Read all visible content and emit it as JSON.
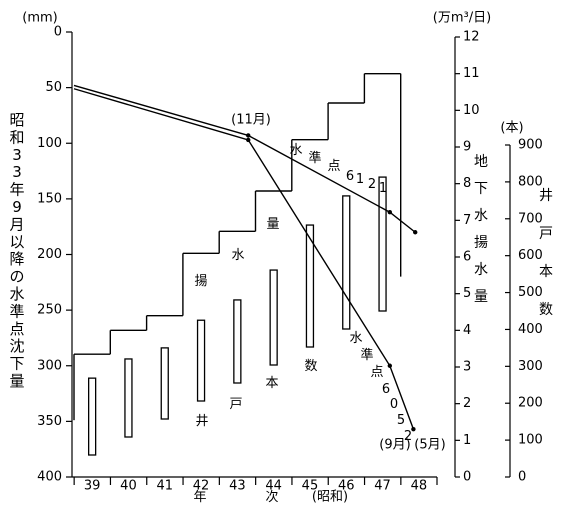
{
  "chart_data": {
    "type": "line",
    "ylabel": "昭和33年9月以降の水準点沈下量",
    "yunit": "(mm)",
    "ylim": [
      0,
      400
    ],
    "yticks": [
      0,
      50,
      100,
      150,
      200,
      250,
      300,
      350,
      400
    ],
    "y_inverted": true,
    "y2label": "地下水揚水量",
    "y2unit": "(万m³/日)",
    "y2lim": [
      0,
      12
    ],
    "y2ticks": [
      0,
      1,
      2,
      3,
      4,
      5,
      6,
      7,
      8,
      9,
      10,
      11,
      12
    ],
    "y3label": "井戸本数",
    "y3unit": "(本)",
    "y3lim": [
      0,
      900
    ],
    "y3ticks": [
      0,
      100,
      200,
      300,
      400,
      500,
      600,
      700,
      800,
      900
    ],
    "xlabel": "年次",
    "xlabel_era": "(昭和)",
    "xlim": [
      38.5,
      48.5
    ],
    "xticks": [
      39,
      40,
      41,
      42,
      43,
      44,
      45,
      46,
      47,
      48
    ],
    "series": [
      {
        "name": "水準点6121",
        "type": "line",
        "axis": "y",
        "color": "#000000",
        "x": [
          38.5,
          43.3,
          47.2,
          47.9
        ],
        "values": [
          48,
          93,
          162,
          180
        ]
      },
      {
        "name": "水準点6052",
        "type": "line",
        "axis": "y",
        "color": "#000000",
        "x": [
          38.5,
          43.3,
          47.2,
          47.85
        ],
        "values": [
          51,
          97,
          300,
          357
        ]
      },
      {
        "name": "揚水量",
        "type": "step",
        "axis": "y2",
        "color": "#000000",
        "x": [
          39,
          40,
          41,
          42,
          43,
          44,
          45,
          46,
          47
        ],
        "values": [
          3.35,
          4.0,
          4.4,
          6.1,
          6.7,
          7.8,
          9.2,
          10.2,
          11.0
        ]
      },
      {
        "name": "井戸本数",
        "type": "bar",
        "axis": "y3",
        "color": "#000000",
        "x": [
          39,
          40,
          41,
          42,
          43,
          44,
          45,
          46,
          47
        ],
        "values": [
          268,
          320,
          350,
          425,
          480,
          561,
          683,
          762,
          813
        ]
      }
    ],
    "annotations": [
      "(11月)",
      "(9月)",
      "(5月)"
    ]
  }
}
